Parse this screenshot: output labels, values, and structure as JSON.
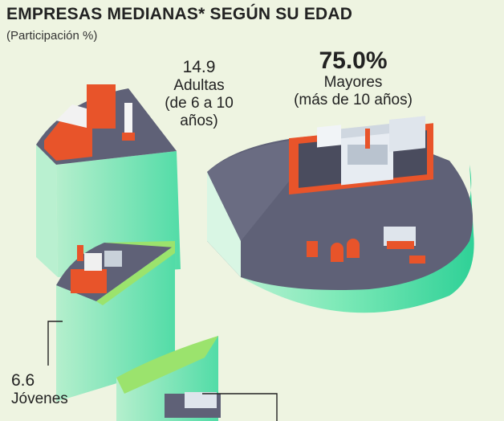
{
  "header": {
    "title": "EMPRESAS MEDIANAS* SEGÚN SU EDAD",
    "subtitle": "(Participación %)"
  },
  "colors": {
    "background": "#eef4e1",
    "side_light": "#b8f0cf",
    "side_dark": "#3fdba0",
    "top_surface": "#5f6177",
    "grass": "#9be36d",
    "building_red": "#e8542a"
  },
  "chart_data": {
    "type": "pie",
    "title": "EMPRESAS MEDIANAS* SEGÚN SU EDAD",
    "subtitle": "(Participación %)",
    "slices": [
      {
        "value_label": "75.0%",
        "value": 75.0,
        "name_lines": [
          "Mayores",
          "(más de 10 años)"
        ]
      },
      {
        "value_label": "14.9",
        "value": 14.9,
        "name_lines": [
          "Adultas",
          "(de 6 a 10",
          "años)"
        ]
      },
      {
        "value_label": "6.6",
        "value": 6.6,
        "name_lines": [
          "Jóvenes"
        ]
      },
      {
        "value_label": "",
        "value": 3.5,
        "name_lines": []
      }
    ],
    "style": "3D exploded pie drawn as stepped cylinder slices"
  }
}
